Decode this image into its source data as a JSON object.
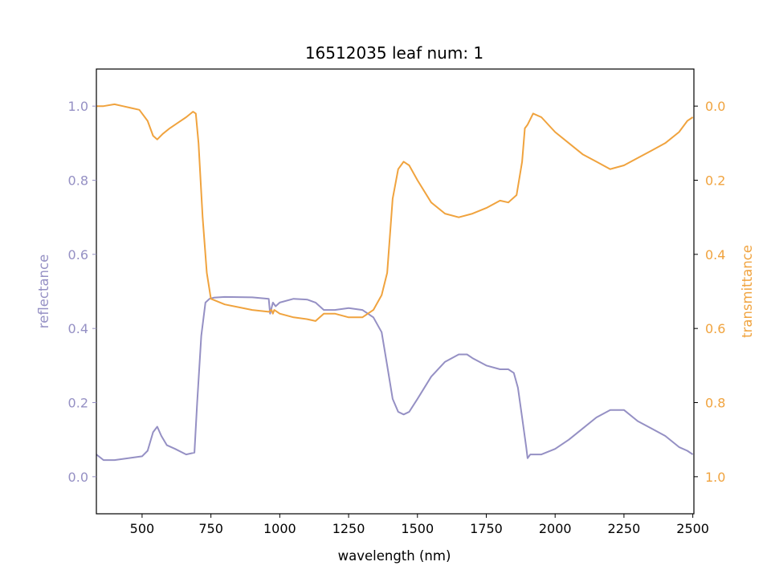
{
  "chart_data": {
    "type": "line",
    "title": "16512035 leaf num: 1",
    "xlabel": "wavelength (nm)",
    "ylabel_left": "reflectance",
    "ylabel_right": "transmittance",
    "xlim": [
      334,
      2504
    ],
    "ylim_left": [
      -0.1,
      1.1
    ],
    "ylim_right": [
      1.1,
      -0.1
    ],
    "right_axis_inverted": true,
    "grid": false,
    "x_ticks": [
      500,
      750,
      1000,
      1250,
      1500,
      1750,
      2000,
      2250,
      2500
    ],
    "y_ticks_left": [
      0.0,
      0.2,
      0.4,
      0.6,
      0.8,
      1.0
    ],
    "y_ticks_right": [
      0.0,
      0.2,
      0.4,
      0.6,
      0.8,
      1.0
    ],
    "x_tick_labels": [
      "500",
      "750",
      "1000",
      "1250",
      "1500",
      "1750",
      "2000",
      "2250",
      "2500"
    ],
    "y_tick_labels_left": [
      "0.0",
      "0.2",
      "0.4",
      "0.6",
      "0.8",
      "1.0"
    ],
    "y_tick_labels_right": [
      "0.0",
      "0.2",
      "0.4",
      "0.6",
      "0.8",
      "1.0"
    ],
    "series": [
      {
        "name": "reflectance",
        "axis": "left",
        "color": "#9590c4",
        "x": [
          334,
          360,
          400,
          450,
          500,
          520,
          540,
          555,
          570,
          590,
          620,
          660,
          690,
          700,
          715,
          730,
          745,
          760,
          800,
          900,
          960,
          965,
          975,
          985,
          1000,
          1050,
          1100,
          1130,
          1160,
          1200,
          1250,
          1300,
          1340,
          1370,
          1390,
          1410,
          1430,
          1450,
          1470,
          1500,
          1550,
          1600,
          1650,
          1680,
          1700,
          1750,
          1800,
          1830,
          1850,
          1865,
          1880,
          1895,
          1900,
          1910,
          1950,
          2000,
          2050,
          2100,
          2150,
          2200,
          2250,
          2300,
          2350,
          2400,
          2450,
          2480,
          2500
        ],
        "y": [
          0.06,
          0.045,
          0.045,
          0.05,
          0.055,
          0.07,
          0.12,
          0.135,
          0.11,
          0.085,
          0.075,
          0.06,
          0.065,
          0.2,
          0.38,
          0.47,
          0.48,
          0.483,
          0.485,
          0.484,
          0.48,
          0.44,
          0.47,
          0.46,
          0.47,
          0.48,
          0.478,
          0.47,
          0.45,
          0.45,
          0.455,
          0.45,
          0.43,
          0.39,
          0.3,
          0.21,
          0.175,
          0.168,
          0.175,
          0.21,
          0.27,
          0.31,
          0.33,
          0.33,
          0.32,
          0.3,
          0.29,
          0.29,
          0.28,
          0.24,
          0.16,
          0.08,
          0.05,
          0.06,
          0.06,
          0.075,
          0.1,
          0.13,
          0.16,
          0.18,
          0.18,
          0.15,
          0.13,
          0.11,
          0.08,
          0.07,
          0.06
        ]
      },
      {
        "name": "transmittance",
        "axis": "right",
        "color": "#f0a33e",
        "x": [
          334,
          360,
          400,
          430,
          460,
          490,
          520,
          540,
          555,
          575,
          600,
          630,
          660,
          685,
          695,
          705,
          720,
          735,
          750,
          800,
          900,
          960,
          970,
          975,
          980,
          1000,
          1050,
          1100,
          1130,
          1160,
          1200,
          1250,
          1300,
          1340,
          1370,
          1390,
          1410,
          1430,
          1450,
          1470,
          1500,
          1550,
          1600,
          1650,
          1700,
          1750,
          1800,
          1830,
          1860,
          1880,
          1890,
          1900,
          1920,
          1950,
          2000,
          2050,
          2100,
          2150,
          2200,
          2250,
          2300,
          2350,
          2400,
          2450,
          2480,
          2500
        ],
        "y": [
          0.0,
          0.0,
          -0.005,
          0.0,
          0.005,
          0.01,
          0.04,
          0.08,
          0.09,
          0.075,
          0.06,
          0.045,
          0.03,
          0.015,
          0.02,
          0.1,
          0.3,
          0.45,
          0.52,
          0.535,
          0.55,
          0.555,
          0.55,
          0.56,
          0.55,
          0.56,
          0.57,
          0.575,
          0.58,
          0.56,
          0.56,
          0.57,
          0.57,
          0.55,
          0.51,
          0.45,
          0.25,
          0.17,
          0.15,
          0.16,
          0.2,
          0.26,
          0.29,
          0.3,
          0.29,
          0.275,
          0.255,
          0.26,
          0.24,
          0.15,
          0.06,
          0.05,
          0.02,
          0.03,
          0.07,
          0.1,
          0.13,
          0.15,
          0.17,
          0.16,
          0.14,
          0.12,
          0.1,
          0.07,
          0.04,
          0.03
        ]
      }
    ]
  }
}
